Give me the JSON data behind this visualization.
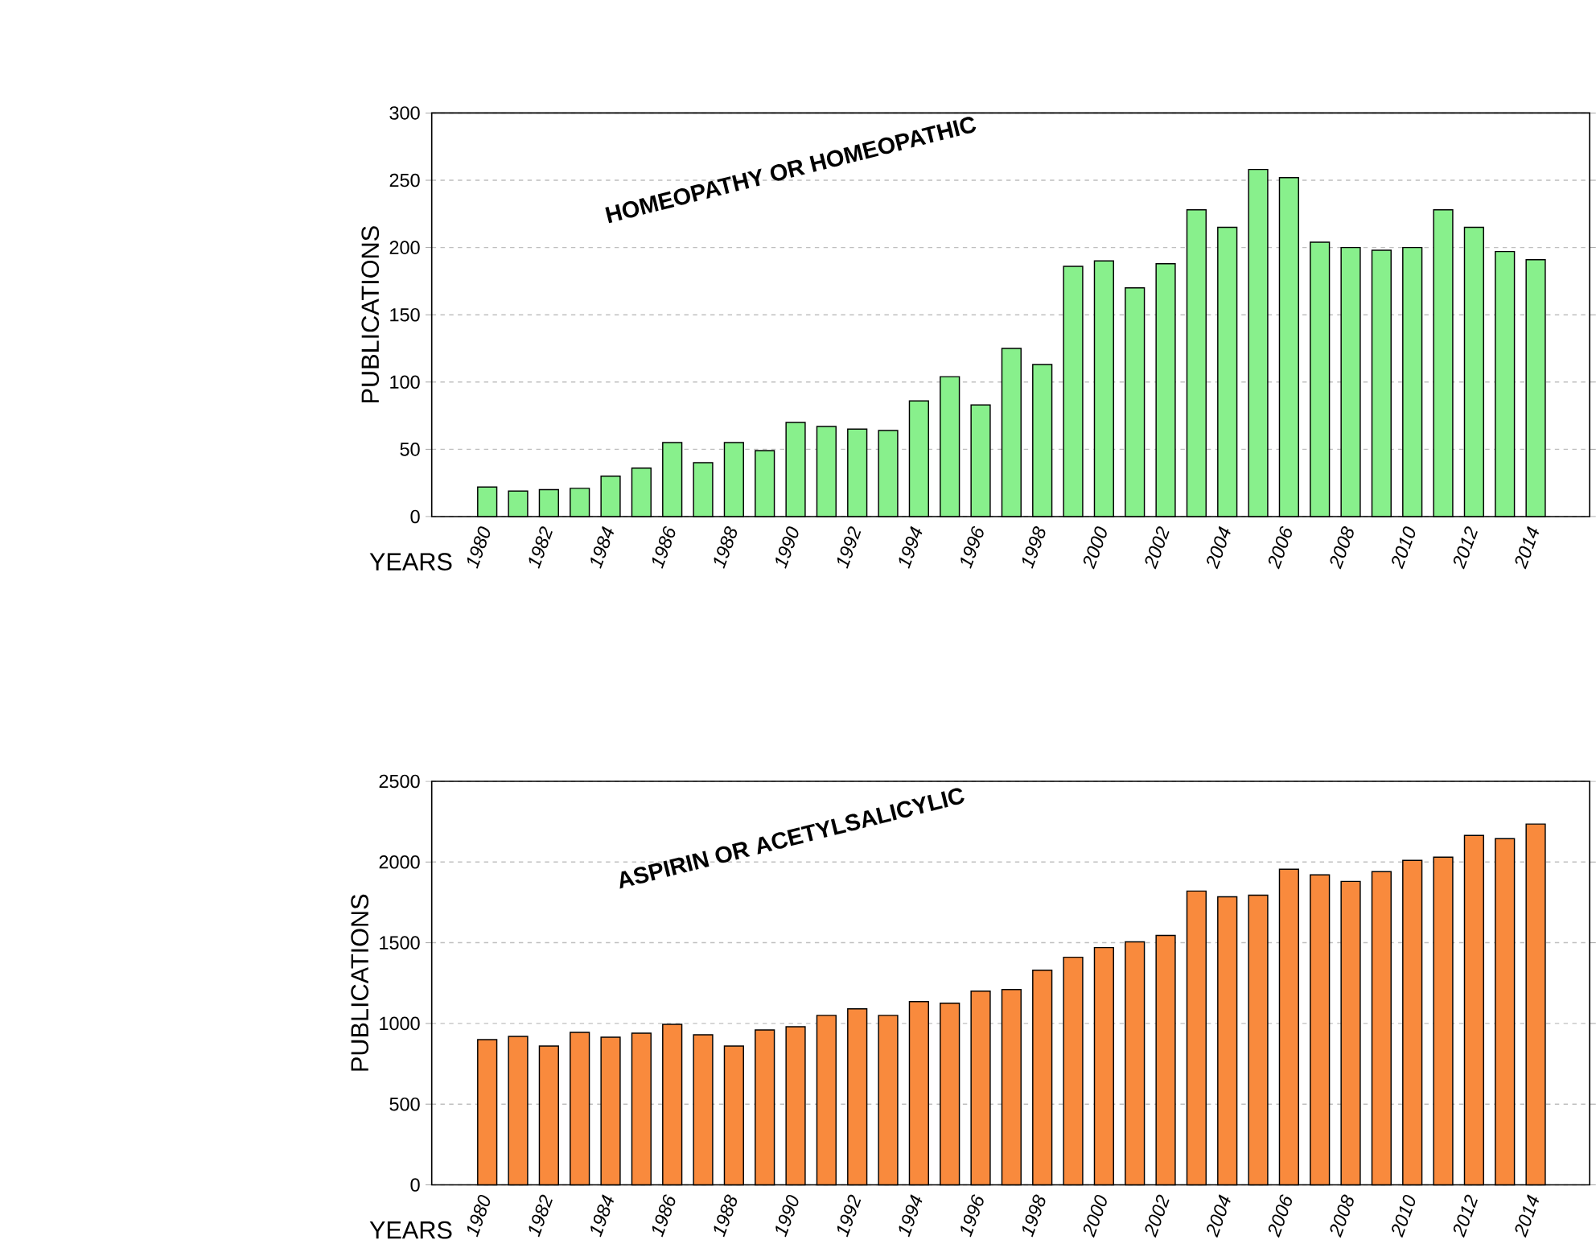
{
  "chart_data": [
    {
      "type": "bar",
      "title": "HOMEOPATHY OR HOMEOPATHIC",
      "xlabel": "YEARS",
      "ylabel": "PUBLICATIONS",
      "categories": [
        "1980",
        null,
        "1982",
        null,
        "1984",
        null,
        "1986",
        null,
        "1988",
        null,
        "1990",
        null,
        "1992",
        null,
        "1994",
        null,
        "1996",
        null,
        "1998",
        null,
        "2000",
        null,
        "2002",
        null,
        "2004",
        null,
        "2006",
        null,
        "2008",
        null,
        "2010",
        null,
        "2012",
        null,
        "2014"
      ],
      "values": [
        22,
        19,
        20,
        21,
        30,
        36,
        55,
        40,
        55,
        49,
        70,
        67,
        65,
        64,
        86,
        104,
        83,
        125,
        113,
        186,
        190,
        170,
        188,
        228,
        215,
        258,
        252,
        204,
        200,
        198,
        200,
        228,
        215,
        197,
        191
      ],
      "color": "#88f08c",
      "ylim": [
        0,
        300
      ],
      "yticks": [
        0,
        50,
        100,
        150,
        200,
        250,
        300
      ],
      "grid": "y"
    },
    {
      "type": "bar",
      "title": "ASPIRIN OR ACETYLSALICYLIC",
      "xlabel": "YEARS",
      "ylabel": "PUBLICATIONS",
      "categories": [
        "1980",
        null,
        "1982",
        null,
        "1984",
        null,
        "1986",
        null,
        "1988",
        null,
        "1990",
        null,
        "1992",
        null,
        "1994",
        null,
        "1996",
        null,
        "1998",
        null,
        "2000",
        null,
        "2002",
        null,
        "2004",
        null,
        "2006",
        null,
        "2008",
        null,
        "2010",
        null,
        "2012",
        null,
        "2014"
      ],
      "values": [
        900,
        920,
        860,
        945,
        915,
        940,
        995,
        930,
        860,
        960,
        980,
        1050,
        1090,
        1050,
        1135,
        1125,
        1200,
        1210,
        1330,
        1410,
        1470,
        1505,
        1545,
        1820,
        1785,
        1795,
        1955,
        1920,
        1880,
        1940,
        2010,
        2030,
        2165,
        2145,
        2235
      ],
      "color": "#f98a3d",
      "ylim": [
        0,
        2500
      ],
      "yticks": [
        0,
        500,
        1000,
        1500,
        2000,
        2500
      ],
      "grid": "y"
    }
  ]
}
